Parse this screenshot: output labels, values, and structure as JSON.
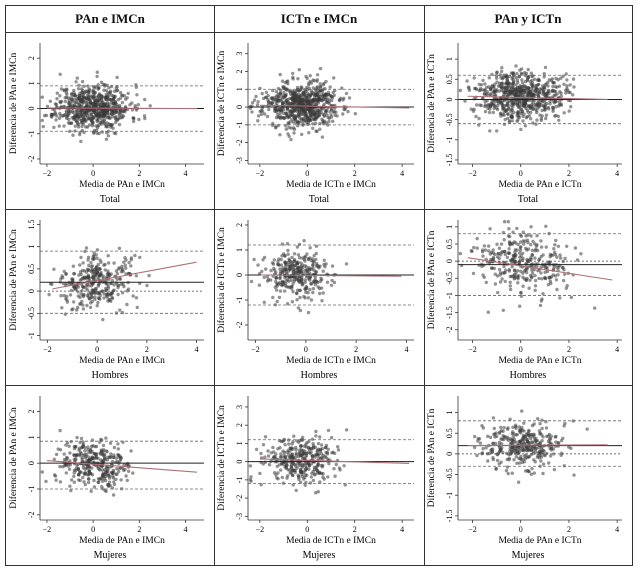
{
  "columns": [
    "PAn e IMCn",
    "ICTn e IMCn",
    "PAn y ICTn"
  ],
  "groups": [
    "Total",
    "Hombres",
    "Mujeres"
  ],
  "chart_data": [
    {
      "type": "scatter",
      "col": 0,
      "row": 0,
      "xlabel": "Media de PAn e IMCn",
      "ylabel": "Diferencia de PAn e IMCn",
      "group_label": "Total",
      "xlim": [
        -2.3,
        4.8
      ],
      "ylim": [
        -2.2,
        2.6
      ],
      "xticks": [
        -2,
        0,
        2,
        4
      ],
      "yticks": [
        -2,
        -1,
        0,
        1,
        2
      ],
      "center": [
        0,
        0.05
      ],
      "spread": [
        0.8,
        0.45
      ],
      "slope": 0,
      "n": 650,
      "seed": 11,
      "mean_diff": 0.0,
      "loa_upper": 0.9,
      "loa_lower": -0.9,
      "fit_line": [
        [
          -2,
          0.02
        ],
        [
          4.5,
          0.0
        ]
      ]
    },
    {
      "type": "scatter",
      "col": 1,
      "row": 0,
      "xlabel": "Media de ICTn e IMCn",
      "ylabel": "Diferencia de ICTn e IMCn",
      "group_label": "Total",
      "xlim": [
        -2.5,
        4.5
      ],
      "ylim": [
        -3.2,
        3.6
      ],
      "xticks": [
        -2,
        0,
        2,
        4
      ],
      "yticks": [
        -3,
        -2,
        -1,
        0,
        1,
        2,
        3
      ],
      "center": [
        -0.3,
        0.1
      ],
      "spread": [
        0.8,
        0.65
      ],
      "slope": 0,
      "n": 650,
      "seed": 23,
      "mean_diff": 0.0,
      "loa_upper": 1.0,
      "loa_lower": -1.0,
      "fit_line": [
        [
          -2,
          0.1
        ],
        [
          4.3,
          -0.05
        ]
      ]
    },
    {
      "type": "scatter",
      "col": 2,
      "row": 0,
      "xlabel": "Media de PAn e ICTn",
      "ylabel": "Diferencia de PAn e ICTn",
      "group_label": "Total",
      "xlim": [
        -2.6,
        4.2
      ],
      "ylim": [
        -1.6,
        1.4
      ],
      "xticks": [
        -2,
        0,
        2,
        4
      ],
      "yticks": [
        -1.5,
        -1,
        -0.5,
        0,
        0.5,
        1
      ],
      "center": [
        0,
        0.1
      ],
      "spread": [
        0.9,
        0.3
      ],
      "slope": 0,
      "n": 650,
      "seed": 37,
      "mean_diff": 0.0,
      "loa_upper": 0.6,
      "loa_lower": -0.6,
      "fit_line": [
        [
          -2.2,
          0.08
        ],
        [
          3.6,
          0.0
        ]
      ]
    },
    {
      "type": "scatter",
      "col": 0,
      "row": 1,
      "xlabel": "Media de PAn e IMCn",
      "ylabel": "Diferencia de PAn e IMCn",
      "group_label": "Hombres",
      "xlim": [
        -2.3,
        4.3
      ],
      "ylim": [
        -1.1,
        1.6
      ],
      "xticks": [
        -2,
        0,
        2,
        4
      ],
      "yticks": [
        -1,
        -0.5,
        0,
        0.5,
        1,
        1.5
      ],
      "center": [
        0,
        0.2
      ],
      "spread": [
        0.8,
        0.3
      ],
      "slope": 0.08,
      "n": 320,
      "seed": 41,
      "mean_diff": 0.2,
      "loa_upper": 0.9,
      "loa_lower": -0.5,
      "fit_line": [
        [
          -1.8,
          0.05
        ],
        [
          4,
          0.65
        ]
      ]
    },
    {
      "type": "scatter",
      "col": 1,
      "row": 1,
      "xlabel": "Media de ICTn e IMCn",
      "ylabel": "Diferencia de ICTn e IMCn",
      "group_label": "Hombres",
      "xlim": [
        -2.3,
        4.3
      ],
      "ylim": [
        -2.6,
        2.2
      ],
      "xticks": [
        -2,
        0,
        2,
        4
      ],
      "yticks": [
        -2,
        -1,
        0,
        1,
        2
      ],
      "center": [
        -0.3,
        0
      ],
      "spread": [
        0.7,
        0.5
      ],
      "slope": 0,
      "n": 320,
      "seed": 53,
      "mean_diff": 0.0,
      "loa_upper": 1.2,
      "loa_lower": -1.2,
      "fit_line": [
        [
          -1.8,
          0.0
        ],
        [
          3.8,
          -0.05
        ]
      ]
    },
    {
      "type": "scatter",
      "col": 2,
      "row": 1,
      "xlabel": "Media de PAn e ICTn",
      "ylabel": "Diferencia de PAn e ICTn",
      "group_label": "Hombres",
      "xlim": [
        -2.6,
        4.2
      ],
      "ylim": [
        -2.3,
        1.2
      ],
      "xticks": [
        -2,
        0,
        2,
        4
      ],
      "yticks": [
        -2,
        -1.5,
        -1,
        -0.5,
        0,
        0.5,
        1
      ],
      "center": [
        0,
        -0.1
      ],
      "spread": [
        0.9,
        0.45
      ],
      "slope": -0.1,
      "n": 320,
      "seed": 67,
      "mean_diff": -0.1,
      "loa_upper": 0.8,
      "loa_lower": -1.0,
      "fit_line": [
        [
          -2.2,
          0.1
        ],
        [
          3.8,
          -0.55
        ]
      ]
    },
    {
      "type": "scatter",
      "col": 0,
      "row": 2,
      "xlabel": "Media de PAn e IMCn",
      "ylabel": "Diferencia de PAn e IMCn",
      "group_label": "Mujeres",
      "xlim": [
        -2.3,
        4.8
      ],
      "ylim": [
        -2.2,
        2.6
      ],
      "xticks": [
        -2,
        0,
        2,
        4
      ],
      "yticks": [
        -2,
        -1,
        0,
        1,
        2
      ],
      "center": [
        0,
        0
      ],
      "spread": [
        0.8,
        0.45
      ],
      "slope": -0.05,
      "n": 330,
      "seed": 79,
      "mean_diff": 0.0,
      "loa_upper": 0.85,
      "loa_lower": -1.0,
      "fit_line": [
        [
          -2,
          0.1
        ],
        [
          4.5,
          -0.35
        ]
      ]
    },
    {
      "type": "scatter",
      "col": 1,
      "row": 2,
      "xlabel": "Media de ICTn e IMCn",
      "ylabel": "Diferencia de ICTn e IMCn",
      "group_label": "Mujeres",
      "xlim": [
        -2.5,
        4.5
      ],
      "ylim": [
        -3.2,
        3.6
      ],
      "xticks": [
        -2,
        0,
        2,
        4
      ],
      "yticks": [
        -3,
        -2,
        -1,
        0,
        1,
        2,
        3
      ],
      "center": [
        -0.3,
        0.1
      ],
      "spread": [
        0.8,
        0.65
      ],
      "slope": 0,
      "n": 330,
      "seed": 83,
      "mean_diff": 0.0,
      "loa_upper": 1.2,
      "loa_lower": -1.2,
      "fit_line": [
        [
          -2,
          0.15
        ],
        [
          4.3,
          -0.1
        ]
      ]
    },
    {
      "type": "scatter",
      "col": 2,
      "row": 2,
      "xlabel": "Media de PAn e ICTn",
      "ylabel": "Diferencia de PAn e ICTn",
      "group_label": "Mujeres",
      "xlim": [
        -2.6,
        4.2
      ],
      "ylim": [
        -1.6,
        1.4
      ],
      "xticks": [
        -2,
        0,
        2,
        4
      ],
      "yticks": [
        -1.5,
        -1,
        -0.5,
        0,
        0.5,
        1
      ],
      "center": [
        0,
        0.2
      ],
      "spread": [
        0.9,
        0.3
      ],
      "slope": 0,
      "n": 330,
      "seed": 97,
      "mean_diff": 0.2,
      "loa_upper": 0.8,
      "loa_lower": -0.3,
      "fit_line": [
        [
          -2.2,
          0.2
        ],
        [
          3.6,
          0.22
        ]
      ]
    }
  ],
  "colors": {
    "points": "#3a3a3a",
    "fit": "#b07078",
    "reference": "#444444",
    "loa": "#666666"
  }
}
